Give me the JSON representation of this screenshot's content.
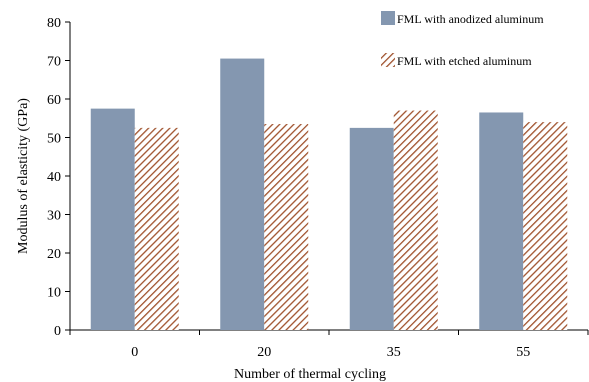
{
  "chart_data": {
    "type": "bar",
    "title": "",
    "xlabel": "Number of thermal cycling",
    "ylabel": "Modulus of  elasticity  (GPa)",
    "categories": [
      "0",
      "20",
      "35",
      "55"
    ],
    "ylim": [
      0,
      80
    ],
    "yticks": [
      0,
      10,
      20,
      30,
      40,
      50,
      60,
      70,
      80
    ],
    "grid": false,
    "legend": "top-right",
    "series": [
      {
        "name": "FML with anodized aluminum",
        "values": [
          57.5,
          70.5,
          52.5,
          56.5
        ],
        "color": "#8497b0",
        "fill": "solid"
      },
      {
        "name": "FML with etched aluminum",
        "values": [
          52.5,
          53.5,
          57.0,
          54.0
        ],
        "color": "#a0522d",
        "fill": "diagonal-hatch"
      }
    ]
  }
}
